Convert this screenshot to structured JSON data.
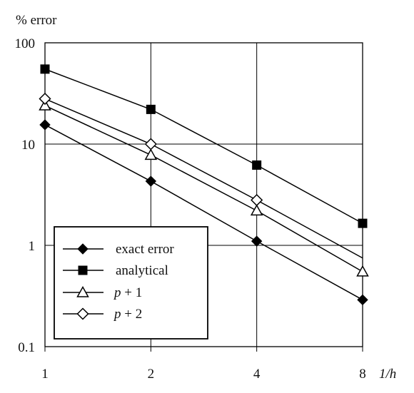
{
  "chart_data": {
    "type": "line",
    "ylabel": "% error",
    "xlabel": "1/h",
    "x_scale": "log2",
    "y_scale": "log10",
    "x": [
      1,
      2,
      4,
      8
    ],
    "x_tick_labels": [
      "1",
      "2",
      "4",
      "8"
    ],
    "ylim": [
      0.1,
      100
    ],
    "y_ticks": [
      100,
      10,
      1,
      0.1
    ],
    "y_tick_labels": [
      "100",
      "10",
      "1",
      "0.1"
    ],
    "grid": true,
    "legend_position": "bottom-left",
    "series": [
      {
        "name": "exact error",
        "marker": "diamond-filled",
        "values": [
          15.5,
          4.3,
          1.1,
          0.29
        ]
      },
      {
        "name": "analytical",
        "marker": "square-filled",
        "values": [
          55,
          22,
          6.2,
          1.65
        ]
      },
      {
        "name": "p + 1",
        "marker": "triangle-open",
        "values": [
          24,
          7.8,
          2.2,
          0.55
        ]
      },
      {
        "name": "p + 2",
        "marker": "diamond-open",
        "values": [
          28,
          10,
          2.8,
          0.75
        ]
      }
    ]
  }
}
